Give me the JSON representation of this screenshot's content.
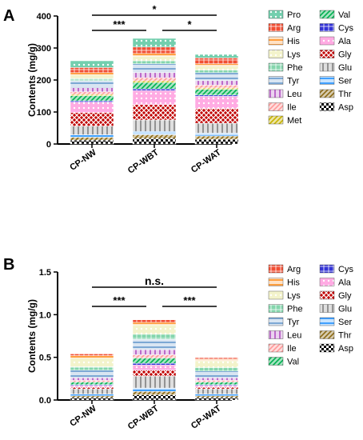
{
  "chart_data": [
    {
      "panel": "A",
      "type": "bar",
      "stacked": true,
      "ylabel": "Contents (mg/g)",
      "ylim": [
        0,
        400
      ],
      "yticks": [
        "0",
        "100",
        "200",
        "300",
        "400"
      ],
      "categories": [
        "CP-NW",
        "CP-WBT",
        "CP-WAT"
      ],
      "series": [
        {
          "name": "Asp",
          "color": "#000000",
          "values": [
            12,
            17,
            15
          ]
        },
        {
          "name": "Thr",
          "color": "#8b6914",
          "values": [
            9,
            12,
            10
          ]
        },
        {
          "name": "Ser",
          "color": "#1e90ff",
          "values": [
            8,
            10,
            9
          ]
        },
        {
          "name": "Glu",
          "color": "#808080",
          "values": [
            27,
            36,
            31
          ]
        },
        {
          "name": "Gly",
          "color": "#c00000",
          "values": [
            42,
            48,
            46
          ]
        },
        {
          "name": "Ala",
          "color": "#ff66cc",
          "values": [
            33,
            44,
            38
          ]
        },
        {
          "name": "Cys",
          "color": "#0000cc",
          "values": [
            4,
            5,
            4
          ]
        },
        {
          "name": "Val",
          "color": "#00b050",
          "values": [
            16,
            20,
            18
          ]
        },
        {
          "name": "Met",
          "color": "#c8b400",
          "values": [
            4,
            5,
            4
          ]
        },
        {
          "name": "Ile",
          "color": "#ff9999",
          "values": [
            8,
            10,
            9
          ]
        },
        {
          "name": "Leu",
          "color": "#b050c0",
          "values": [
            13,
            16,
            14
          ]
        },
        {
          "name": "Tyr",
          "color": "#6699cc",
          "values": [
            22,
            28,
            25
          ]
        },
        {
          "name": "Phe",
          "color": "#66cc99",
          "values": [
            7,
            9,
            8
          ]
        },
        {
          "name": "Lys",
          "color": "#e8e8a0",
          "values": [
            11,
            14,
            12
          ]
        },
        {
          "name": "His",
          "color": "#ff8c1a",
          "values": [
            7,
            9,
            8
          ]
        },
        {
          "name": "Arg",
          "color": "#ee2200",
          "values": [
            16,
            20,
            18
          ]
        },
        {
          "name": "Pro",
          "color": "#00a86b",
          "values": [
            21,
            27,
            11
          ]
        }
      ],
      "legend_order": [
        "Pro",
        "Val",
        "Arg",
        "Cys",
        "His",
        "Ala",
        "Lys",
        "Gly",
        "Phe",
        "Glu",
        "Tyr",
        "Ser",
        "Leu",
        "Thr",
        "Ile",
        "Asp",
        "Met"
      ],
      "legend_placement": "right",
      "significance": [
        {
          "from": "CP-NW",
          "to": "CP-WBT",
          "label": "***"
        },
        {
          "from": "CP-WBT",
          "to": "CP-WAT",
          "label": "*"
        },
        {
          "from": "CP-NW",
          "to": "CP-WAT",
          "label": "*"
        }
      ]
    },
    {
      "panel": "B",
      "type": "bar",
      "stacked": true,
      "ylabel": "Contents (mg/g)",
      "ylim": [
        0,
        1.5
      ],
      "yticks": [
        "0.0",
        "0.5",
        "1.0",
        "1.5"
      ],
      "categories": [
        "CP-NW",
        "CP-WBT",
        "CP-WAT"
      ],
      "series": [
        {
          "name": "Asp",
          "color": "#000000",
          "values": [
            0.03,
            0.06,
            0.03
          ]
        },
        {
          "name": "Thr",
          "color": "#8b6914",
          "values": [
            0.02,
            0.04,
            0.02
          ]
        },
        {
          "name": "Ser",
          "color": "#1e90ff",
          "values": [
            0.02,
            0.04,
            0.02
          ]
        },
        {
          "name": "Glu",
          "color": "#808080",
          "values": [
            0.06,
            0.14,
            0.06
          ]
        },
        {
          "name": "Gly",
          "color": "#c00000",
          "values": [
            0.02,
            0.07,
            0.02
          ]
        },
        {
          "name": "Ala",
          "color": "#ff66cc",
          "values": [
            0.02,
            0.06,
            0.02
          ]
        },
        {
          "name": "Cys",
          "color": "#0000cc",
          "values": [
            0.01,
            0.02,
            0.01
          ]
        },
        {
          "name": "Val",
          "color": "#00b050",
          "values": [
            0.03,
            0.06,
            0.03
          ]
        },
        {
          "name": "Ile",
          "color": "#ff9999",
          "values": [
            0.02,
            0.04,
            0.02
          ]
        },
        {
          "name": "Leu",
          "color": "#b050c0",
          "values": [
            0.03,
            0.06,
            0.03
          ]
        },
        {
          "name": "Tyr",
          "color": "#6699cc",
          "values": [
            0.09,
            0.12,
            0.08
          ]
        },
        {
          "name": "Phe",
          "color": "#66cc99",
          "values": [
            0.04,
            0.06,
            0.04
          ]
        },
        {
          "name": "Lys",
          "color": "#e8e8a0",
          "values": [
            0.1,
            0.11,
            0.08
          ]
        },
        {
          "name": "His",
          "color": "#ff8c1a",
          "values": [
            0.03,
            0.03,
            0.02
          ]
        },
        {
          "name": "Arg",
          "color": "#ee2200",
          "values": [
            0.02,
            0.03,
            0.02
          ]
        }
      ],
      "legend_order": [
        "Arg",
        "Cys",
        "His",
        "Ala",
        "Lys",
        "Gly",
        "Phe",
        "Glu",
        "Tyr",
        "Ser",
        "Leu",
        "Thr",
        "Ile",
        "Asp",
        "Val"
      ],
      "legend_placement": "right",
      "significance": [
        {
          "from": "CP-NW",
          "to": "CP-WBT",
          "label": "***"
        },
        {
          "from": "CP-WBT",
          "to": "CP-WAT",
          "label": "***"
        },
        {
          "from": "CP-NW",
          "to": "CP-WAT",
          "label": "n.s."
        }
      ]
    }
  ]
}
